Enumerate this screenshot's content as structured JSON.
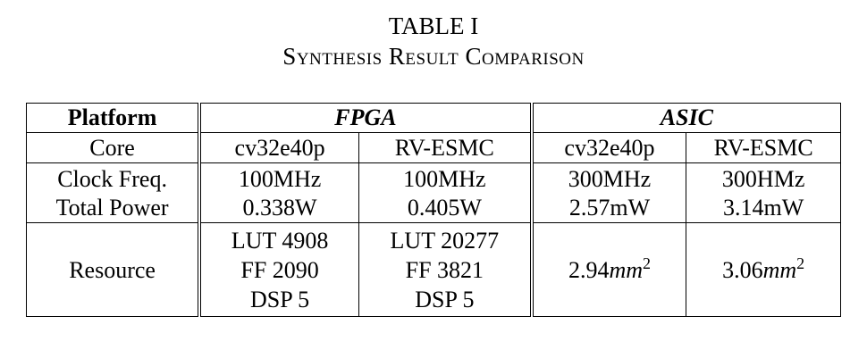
{
  "caption": {
    "title": "TABLE I",
    "subtitle": "Synthesis Result Comparison"
  },
  "table": {
    "header": {
      "platform": "Platform",
      "fpga": "FPGA",
      "asic": "ASIC"
    },
    "core": {
      "label": "Core",
      "fpga_a": "cv32e40p",
      "fpga_b": "RV-ESMC",
      "asic_a": "cv32e40p",
      "asic_b": "RV-ESMC"
    },
    "clock": {
      "label": "Clock Freq.",
      "fpga_a": "100MHz",
      "fpga_b": "100MHz",
      "asic_a": "300MHz",
      "asic_b": "300HMz"
    },
    "power": {
      "label": "Total Power",
      "fpga_a": "0.338W",
      "fpga_b": "0.405W",
      "asic_a": "2.57mW",
      "asic_b": "3.14mW"
    },
    "resource": {
      "label": "Resource",
      "fpga_a": [
        "LUT 4908",
        "FF 2090",
        "DSP 5"
      ],
      "fpga_b": [
        "LUT 20277",
        "FF 3821",
        "DSP 5"
      ],
      "asic_a": {
        "value": "2.94",
        "unit": "mm",
        "exp": "2"
      },
      "asic_b": {
        "value": "3.06",
        "unit": "mm",
        "exp": "2"
      }
    }
  }
}
